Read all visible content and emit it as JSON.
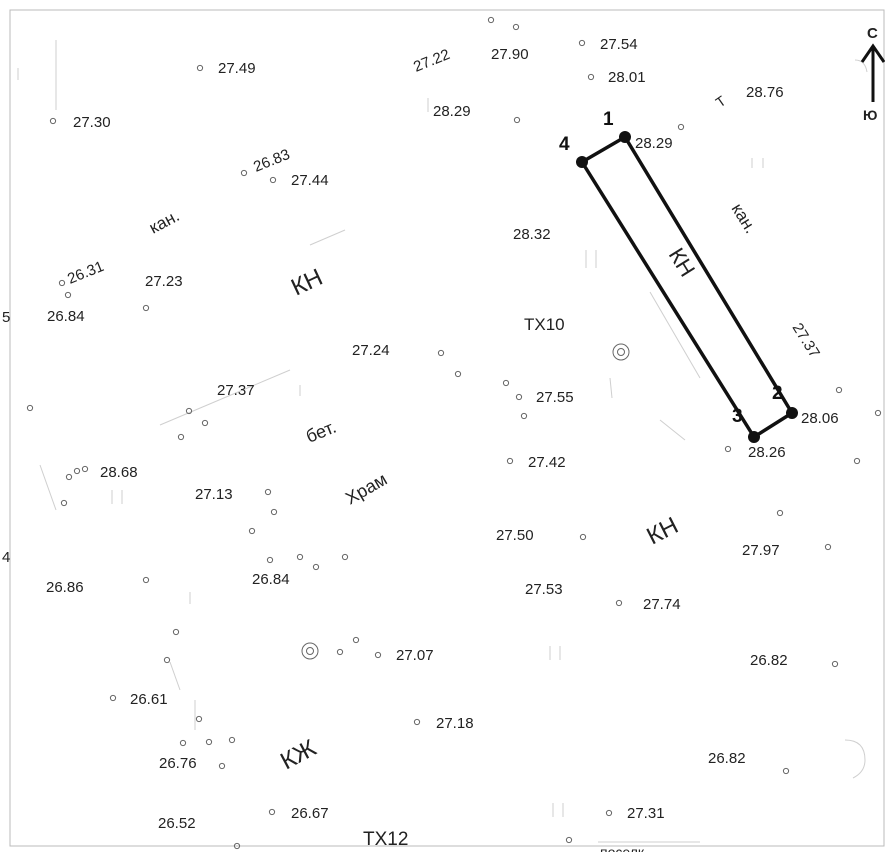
{
  "north_arrow": {
    "top": "С",
    "bottom": "Ю"
  },
  "labels": {
    "kn_left": "КН",
    "kn_right_mid": "КН",
    "kn_parcel": "КН",
    "kan_left": "кан.",
    "kan_right": "кан.",
    "bet": "бет.",
    "hram": "Храм",
    "kzh": "КЖ",
    "tx10": "ТХ10",
    "tx12": "ТХ12",
    "t": "Т",
    "bottom_cut": "поселк",
    "edge_5": "5",
    "edge_4": "4"
  },
  "points": {
    "p1": "1",
    "p2": "2",
    "p3": "3",
    "p4": "4"
  },
  "elevations": {
    "e01": "27.49",
    "e02": "27.30",
    "e03": "27.22",
    "e04": "27.90",
    "e05": "27.54",
    "e06": "28.01",
    "e07": "28.76",
    "e08": "28.29",
    "e09": "28.29",
    "e10": "26.83",
    "e11": "27.44",
    "e12": "28.32",
    "e13": "26.31",
    "e14": "27.23",
    "e15": "26.84",
    "e16": "27.37",
    "e17": "27.24",
    "e18": "27.55",
    "e19": "28.06",
    "e20": "27.37",
    "e21": "28.26",
    "e22": "28.68",
    "e23": "27.13",
    "e24": "27.42",
    "e25": "27.50",
    "e26": "27.97",
    "e27": "26.86",
    "e28": "26.84",
    "e29": "27.53",
    "e30": "27.74",
    "e31": "27.07",
    "e32": "26.82",
    "e33": "26.61",
    "e34": "27.18",
    "e35": "26.76",
    "e36": "26.82",
    "e37": "26.52",
    "e38": "26.67",
    "e39": "27.31"
  }
}
